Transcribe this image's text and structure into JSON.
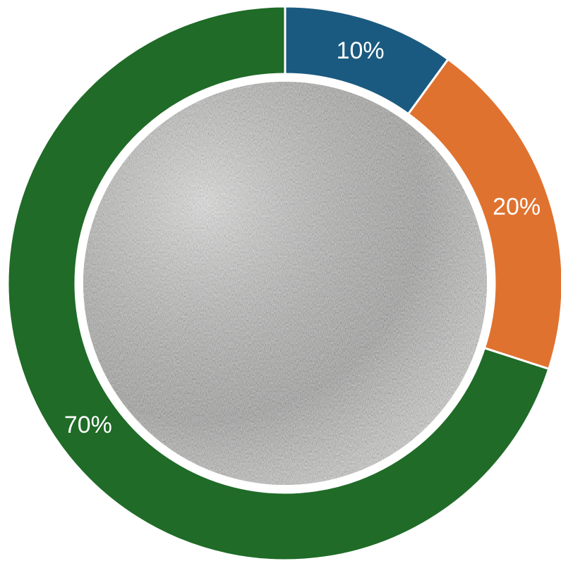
{
  "chart_data": {
    "type": "donut",
    "categories": [
      null,
      null,
      null
    ],
    "values": [
      10,
      20,
      70
    ],
    "value_labels": [
      "10%",
      "20%",
      "70%"
    ],
    "colors": [
      "#1b5a80",
      "#e0722f",
      "#1f6b27"
    ]
  }
}
